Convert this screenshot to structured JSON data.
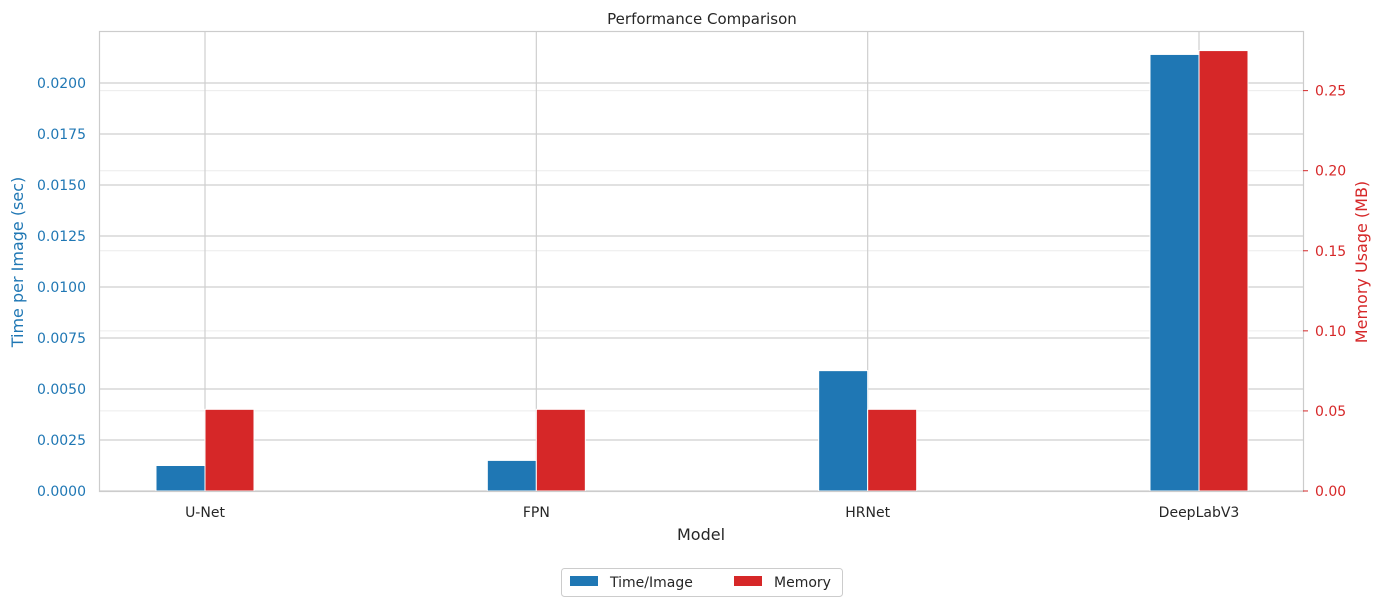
{
  "chart_data": {
    "type": "bar",
    "title": "Performance Comparison",
    "xlabel": "Model",
    "categories": [
      "U-Net",
      "FPN",
      "HRNet",
      "DeepLabV3"
    ],
    "series": [
      {
        "name": "Time/Image",
        "axis": "left",
        "color": "#1f77b4",
        "values": [
          0.00125,
          0.0015,
          0.0059,
          0.0214
        ]
      },
      {
        "name": "Memory",
        "axis": "right",
        "color": "#d62728",
        "values": [
          0.051,
          0.051,
          0.051,
          0.275
        ]
      }
    ],
    "y_left": {
      "label": "Time per Image (sec)",
      "color": "#1f77b4",
      "ylim": [
        0,
        0.0225
      ],
      "ticks": [
        "0.0000",
        "0.0025",
        "0.0050",
        "0.0075",
        "0.0100",
        "0.0125",
        "0.0150",
        "0.0175",
        "0.0200"
      ]
    },
    "y_right": {
      "label": "Memory Usage (MB)",
      "color": "#d62728",
      "ylim": [
        0,
        0.2866
      ],
      "ticks": [
        "0.00",
        "0.05",
        "0.10",
        "0.15",
        "0.20",
        "0.25"
      ]
    },
    "grid": true,
    "legend_position": "bottom-center"
  }
}
